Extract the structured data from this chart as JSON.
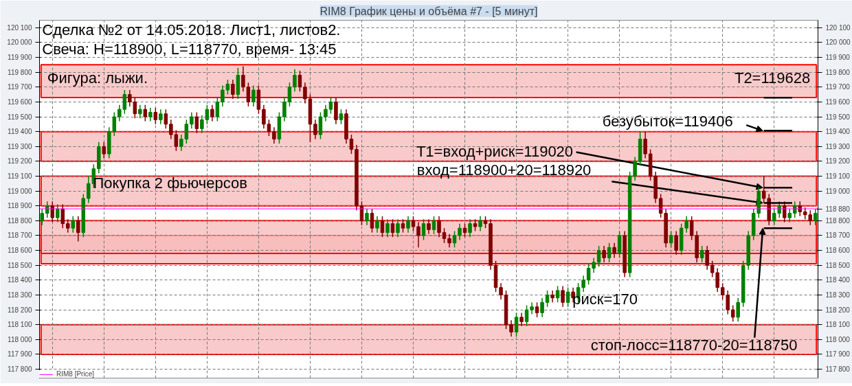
{
  "chart_data": {
    "type": "candlestick",
    "title": "RIM8 График цены и объёма #7 - [5 минут]",
    "annotations": [
      "Сделка №2 от 14.05.2018. Лист1, листов2.",
      "Свеча: H=118900, L=118770, время- 13:45",
      "Фигура: лыжи.",
      "Покупка 2 фьючерсов",
      "риск=170",
      {
        "text": "Т2=119628",
        "y": 119628
      },
      {
        "text": "безубыток=119406",
        "y": 119406
      },
      "Т1=вход+риск=119020",
      {
        "text": "вход=118900+20=118920",
        "y": 118920
      },
      "стоп-лосс=118770-20=118750"
    ],
    "categories": [
      null,
      null,
      null,
      null,
      null,
      null,
      null,
      null,
      null,
      null,
      null,
      null,
      null,
      null,
      null,
      null,
      null,
      null,
      null,
      null,
      null,
      null,
      null,
      null,
      null,
      null,
      null,
      null,
      null,
      null,
      null,
      null,
      null,
      null,
      null,
      null,
      null,
      null,
      null,
      null,
      null,
      null,
      null,
      null,
      null,
      null,
      null,
      null,
      null,
      null,
      null,
      null,
      null,
      null,
      null,
      null,
      null,
      null,
      null,
      null,
      null,
      null,
      null,
      null,
      null,
      null,
      null,
      null,
      null,
      null,
      null,
      null,
      null,
      null,
      null,
      null,
      null,
      null,
      null,
      null,
      null,
      null,
      null,
      null,
      null,
      null,
      null,
      null,
      null,
      null,
      null,
      null,
      null,
      null,
      null,
      null,
      null,
      null,
      null,
      null,
      null,
      null,
      null,
      null,
      null,
      null,
      null,
      null,
      null,
      null,
      null,
      null,
      null,
      null,
      null,
      null,
      null,
      null,
      null,
      null,
      null,
      null,
      null,
      null,
      null,
      null,
      null,
      null,
      null,
      null,
      null,
      null,
      null,
      null,
      null,
      null,
      null,
      null,
      null,
      null,
      null,
      null,
      null,
      null,
      null,
      null,
      null,
      null,
      null,
      null,
      null
    ],
    "colors": [
      "#008000",
      "#008000",
      "#800000",
      "#008000",
      "#800000",
      "#800000",
      "#008000",
      "#800000",
      "#008000",
      "#008000",
      "#008000",
      "#008000",
      "#800000",
      "#008000",
      "#008000",
      "#008000",
      "#008000",
      "#800000",
      "#800000",
      "#008000",
      "#800000",
      "#008000",
      "#800000",
      "#008000",
      "#800000",
      "#800000",
      "#800000",
      "#008000",
      "#008000",
      "#008000",
      "#800000",
      "#008000",
      "#008000",
      "#800000",
      "#008000",
      "#008000",
      "#008000",
      "#800000",
      "#008000",
      "#800000",
      "#800000",
      "#008000",
      "#800000",
      "#800000",
      "#800000",
      "#800000",
      "#008000",
      "#008000",
      "#008000",
      "#008000",
      "#800000",
      "#800000",
      "#800000",
      "#800000",
      "#008000",
      "#008000",
      "#008000",
      "#800000",
      "#008000",
      "#800000",
      "#800000",
      "#800000",
      "#800000",
      "#008000",
      "#800000",
      "#008000",
      "#800000",
      "#008000",
      "#800000",
      "#008000",
      "#800000",
      "#008000",
      "#800000",
      "#800000",
      "#008000",
      "#800000",
      "#008000",
      "#800000",
      "#800000",
      "#800000",
      "#008000",
      "#008000",
      "#800000",
      "#008000",
      "#800000",
      "#008000",
      "#800000",
      "#800000",
      "#800000",
      "#800000",
      "#800000",
      "#800000",
      "#008000",
      "#800000",
      "#008000",
      "#008000",
      "#800000",
      "#008000",
      "#008000",
      "#800000",
      "#008000",
      "#800000",
      "#008000",
      "#800000",
      "#008000",
      "#008000",
      "#008000",
      "#008000",
      "#008000",
      "#800000",
      "#008000",
      "#800000",
      "#008000",
      "#800000",
      "#008000",
      "#008000",
      "#008000",
      "#800000",
      "#800000",
      "#800000",
      "#800000",
      "#800000",
      "#008000",
      "#800000",
      "#008000",
      "#008000",
      "#800000",
      "#800000",
      "#008000",
      "#800000",
      "#800000",
      "#800000",
      "#800000",
      "#800000",
      "#800000",
      "#008000",
      "#008000",
      "#008000",
      "#008000",
      "#008000",
      "#800000",
      "#800000",
      "#008000",
      "#008000",
      "#800000",
      "#008000",
      "#008000",
      "#800000",
      "#800000",
      "#800000",
      "#008000"
    ],
    "ohlc": [
      [
        118800,
        118880,
        118770,
        118850
      ],
      [
        118850,
        118930,
        118820,
        118900
      ],
      [
        118900,
        118930,
        118790,
        118820
      ],
      [
        118820,
        118910,
        118790,
        118880
      ],
      [
        118880,
        118910,
        118750,
        118780
      ],
      [
        118780,
        118810,
        118720,
        118750
      ],
      [
        118750,
        118830,
        118720,
        118800
      ],
      [
        118800,
        118830,
        118660,
        118720
      ],
      [
        118720,
        118980,
        118690,
        118950
      ],
      [
        118950,
        119100,
        118920,
        119050
      ],
      [
        119050,
        119180,
        119020,
        119150
      ],
      [
        119150,
        119330,
        119120,
        119300
      ],
      [
        119300,
        119330,
        119220,
        119250
      ],
      [
        119250,
        119430,
        119220,
        119400
      ],
      [
        119400,
        119530,
        119370,
        119500
      ],
      [
        119500,
        119580,
        119470,
        119550
      ],
      [
        119550,
        119680,
        119520,
        119650
      ],
      [
        119650,
        119680,
        119570,
        119600
      ],
      [
        119600,
        119630,
        119490,
        119520
      ],
      [
        119520,
        119580,
        119490,
        119550
      ],
      [
        119550,
        119580,
        119470,
        119500
      ],
      [
        119500,
        119560,
        119470,
        119530
      ],
      [
        119530,
        119560,
        119450,
        119480
      ],
      [
        119480,
        119550,
        119450,
        119520
      ],
      [
        119520,
        119550,
        119420,
        119450
      ],
      [
        119450,
        119480,
        119350,
        119380
      ],
      [
        119380,
        119410,
        119270,
        119300
      ],
      [
        119300,
        119380,
        119270,
        119350
      ],
      [
        119350,
        119480,
        119320,
        119450
      ],
      [
        119450,
        119530,
        119420,
        119500
      ],
      [
        119500,
        119530,
        119390,
        119420
      ],
      [
        119420,
        119510,
        119390,
        119480
      ],
      [
        119480,
        119580,
        119450,
        119550
      ],
      [
        119550,
        119580,
        119470,
        119500
      ],
      [
        119500,
        119630,
        119470,
        119600
      ],
      [
        119600,
        119710,
        119570,
        119680
      ],
      [
        119680,
        119750,
        119650,
        119720
      ],
      [
        119720,
        119750,
        119620,
        119650
      ],
      [
        119650,
        119830,
        119620,
        119780
      ],
      [
        119780,
        119840,
        119670,
        119700
      ],
      [
        119700,
        119730,
        119570,
        119600
      ],
      [
        119600,
        119710,
        119570,
        119680
      ],
      [
        119680,
        119710,
        119520,
        119550
      ],
      [
        119550,
        119580,
        119420,
        119450
      ],
      [
        119450,
        119480,
        119370,
        119400
      ],
      [
        119400,
        119430,
        119320,
        119350
      ],
      [
        119350,
        119530,
        119320,
        119500
      ],
      [
        119500,
        119630,
        119470,
        119600
      ],
      [
        119600,
        119730,
        119570,
        119700
      ],
      [
        119700,
        119820,
        119670,
        119780
      ],
      [
        119780,
        119810,
        119670,
        119700
      ],
      [
        119700,
        119730,
        119590,
        119620
      ],
      [
        119620,
        119650,
        119330,
        119450
      ],
      [
        119450,
        119480,
        119350,
        119380
      ],
      [
        119380,
        119530,
        119350,
        119500
      ],
      [
        119500,
        119580,
        119470,
        119550
      ],
      [
        119550,
        119630,
        119520,
        119600
      ],
      [
        119600,
        119630,
        119450,
        119480
      ],
      [
        119480,
        119550,
        119450,
        119520
      ],
      [
        119520,
        119550,
        119320,
        119350
      ],
      [
        119350,
        119380,
        119250,
        119280
      ],
      [
        119280,
        119310,
        118870,
        118900
      ],
      [
        118900,
        118930,
        118770,
        118800
      ],
      [
        118800,
        118880,
        118770,
        118850
      ],
      [
        118850,
        118880,
        118720,
        118750
      ],
      [
        118750,
        118830,
        118720,
        118800
      ],
      [
        118800,
        118830,
        118690,
        118720
      ],
      [
        118720,
        118810,
        118690,
        118780
      ],
      [
        118780,
        118810,
        118690,
        118720
      ],
      [
        118720,
        118810,
        118690,
        118780
      ],
      [
        118780,
        118810,
        118720,
        118750
      ],
      [
        118750,
        118830,
        118720,
        118800
      ],
      [
        118800,
        118830,
        118730,
        118760
      ],
      [
        118760,
        118790,
        118620,
        118700
      ],
      [
        118700,
        118810,
        118670,
        118780
      ],
      [
        118780,
        118810,
        118710,
        118740
      ],
      [
        118740,
        118830,
        118710,
        118800
      ],
      [
        118800,
        118830,
        118690,
        118720
      ],
      [
        118720,
        118750,
        118650,
        118680
      ],
      [
        118680,
        118710,
        118620,
        118650
      ],
      [
        118650,
        118730,
        118620,
        118700
      ],
      [
        118700,
        118780,
        118670,
        118750
      ],
      [
        118750,
        118780,
        118690,
        118720
      ],
      [
        118720,
        118810,
        118690,
        118780
      ],
      [
        118780,
        118810,
        118730,
        118760
      ],
      [
        118760,
        118830,
        118730,
        118800
      ],
      [
        118800,
        118830,
        118750,
        118780
      ],
      [
        118780,
        118810,
        118470,
        118500
      ],
      [
        118500,
        118530,
        118320,
        118350
      ],
      [
        118350,
        118380,
        118270,
        118300
      ],
      [
        118300,
        118330,
        118070,
        118100
      ],
      [
        118100,
        118130,
        118020,
        118050
      ],
      [
        118050,
        118180,
        118020,
        118150
      ],
      [
        118150,
        118180,
        118090,
        118120
      ],
      [
        118120,
        118230,
        118090,
        118200
      ],
      [
        118200,
        118250,
        118170,
        118220
      ],
      [
        118220,
        118250,
        118150,
        118180
      ],
      [
        118180,
        118280,
        118150,
        118250
      ],
      [
        118250,
        118330,
        118220,
        118300
      ],
      [
        118300,
        118330,
        118250,
        118280
      ],
      [
        118280,
        118360,
        118250,
        118330
      ],
      [
        118330,
        118360,
        118220,
        118250
      ],
      [
        118250,
        118350,
        118220,
        118320
      ],
      [
        118320,
        118350,
        118250,
        118280
      ],
      [
        118280,
        118380,
        118250,
        118350
      ],
      [
        118350,
        118430,
        118320,
        118400
      ],
      [
        118400,
        118510,
        118370,
        118480
      ],
      [
        118480,
        118550,
        118450,
        118520
      ],
      [
        118520,
        118630,
        118490,
        118600
      ],
      [
        118600,
        118630,
        118520,
        118550
      ],
      [
        118550,
        118650,
        118520,
        118620
      ],
      [
        118620,
        118650,
        118550,
        118580
      ],
      [
        118580,
        118730,
        118550,
        118700
      ],
      [
        118700,
        118730,
        118420,
        118450
      ],
      [
        118450,
        119130,
        118420,
        119100
      ],
      [
        119100,
        119230,
        119070,
        119200
      ],
      [
        119200,
        119400,
        119170,
        119350
      ],
      [
        119350,
        119400,
        119220,
        119250
      ],
      [
        119250,
        119280,
        119070,
        119100
      ],
      [
        119100,
        119130,
        118920,
        118950
      ],
      [
        118950,
        118980,
        118820,
        118850
      ],
      [
        118850,
        118880,
        118620,
        118650
      ],
      [
        118650,
        118730,
        118620,
        118700
      ],
      [
        118700,
        118730,
        118570,
        118600
      ],
      [
        118600,
        118780,
        118570,
        118750
      ],
      [
        118750,
        118830,
        118720,
        118800
      ],
      [
        118800,
        118830,
        118670,
        118700
      ],
      [
        118700,
        118730,
        118520,
        118550
      ],
      [
        118550,
        118630,
        118520,
        118600
      ],
      [
        118600,
        118630,
        118470,
        118500
      ],
      [
        118500,
        118530,
        118420,
        118450
      ],
      [
        118450,
        118480,
        118320,
        118350
      ],
      [
        118350,
        118380,
        118270,
        118300
      ],
      [
        118300,
        118330,
        118170,
        118200
      ],
      [
        118200,
        118230,
        118120,
        118150
      ],
      [
        118150,
        118280,
        118120,
        118250
      ],
      [
        118250,
        118530,
        118220,
        118500
      ],
      [
        118500,
        118730,
        118470,
        118700
      ],
      [
        118700,
        118880,
        118670,
        118850
      ],
      [
        118850,
        119030,
        118820,
        119000
      ],
      [
        119000,
        119100,
        118920,
        118950
      ],
      [
        118950,
        118980,
        118770,
        118800
      ],
      [
        118800,
        118880,
        118770,
        118850
      ],
      [
        118850,
        118930,
        118820,
        118900
      ],
      [
        118900,
        118930,
        118790,
        118820
      ],
      [
        118820,
        118880,
        118790,
        118850
      ],
      [
        118850,
        118930,
        118820,
        118900
      ],
      [
        118900,
        118930,
        118830,
        118860
      ],
      [
        118860,
        118890,
        118810,
        118840
      ],
      [
        118840,
        118870,
        118770,
        118800
      ],
      [
        118800,
        118880,
        118770,
        118850
      ]
    ],
    "ylim": [
      117740,
      120150
    ],
    "yticks": [
      {
        "value": 117800,
        "label": "117 800"
      },
      {
        "value": 117900,
        "label": "117 900"
      },
      {
        "value": 118000,
        "label": "118 000"
      },
      {
        "value": 118100,
        "label": "118 100"
      },
      {
        "value": 118200,
        "label": "118 200"
      },
      {
        "value": 118300,
        "label": "118 300"
      },
      {
        "value": 118400,
        "label": "118 400"
      },
      {
        "value": 118500,
        "label": "118 500"
      },
      {
        "value": 118600,
        "label": "118 600"
      },
      {
        "value": 118700,
        "label": "118 700"
      },
      {
        "value": 118800,
        "label": "118 800"
      },
      {
        "value": 118900,
        "label": "118 900"
      },
      {
        "value": 119000,
        "label": "119 000"
      },
      {
        "value": 119100,
        "label": "119 100"
      },
      {
        "value": 119200,
        "label": "119 200"
      },
      {
        "value": 119300,
        "label": "119 300"
      },
      {
        "value": 119400,
        "label": "119 400"
      },
      {
        "value": 119500,
        "label": "119 500"
      },
      {
        "value": 119600,
        "label": "119 600"
      },
      {
        "value": 119700,
        "label": "119 700"
      },
      {
        "value": 119800,
        "label": "119 800"
      },
      {
        "value": 119900,
        "label": "119 900"
      },
      {
        "value": 120000,
        "label": "120 000"
      },
      {
        "value": 120100,
        "label": "120 100"
      }
    ],
    "y2lim": [
      117740,
      120150
    ],
    "y2ticks": [
      {
        "value": 117800,
        "label": "117 800"
      },
      {
        "value": 117900,
        "label": "117 900"
      },
      {
        "value": 118000,
        "label": "118 000"
      },
      {
        "value": 118100,
        "label": "118 100"
      },
      {
        "value": 118200,
        "label": "118 200"
      },
      {
        "value": 118300,
        "label": "118 300"
      },
      {
        "value": 118400,
        "label": "118 400"
      },
      {
        "value": 118500,
        "label": "118 500"
      },
      {
        "value": 118600,
        "label": "118 600"
      },
      {
        "value": 118700,
        "label": "118 700"
      },
      {
        "value": 118800,
        "label": "118 800"
      },
      {
        "value": 118880,
        "label": "118 880"
      },
      {
        "value": 119000,
        "label": "119 000"
      },
      {
        "value": 119100,
        "label": "119 100"
      },
      {
        "value": 119200,
        "label": "119 200"
      },
      {
        "value": 119300,
        "label": "119 300"
      },
      {
        "value": 119400,
        "label": "119 400"
      },
      {
        "value": 119500,
        "label": "119 500"
      },
      {
        "value": 119600,
        "label": "119 600"
      },
      {
        "value": 119700,
        "label": "119 700"
      },
      {
        "value": 119800,
        "label": "119 800"
      },
      {
        "value": 119900,
        "label": "119 900"
      },
      {
        "value": 120000,
        "label": "120 000"
      },
      {
        "value": 120100,
        "label": "120 100"
      }
    ],
    "ref_lines": [
      {
        "axis": "y",
        "value": 118880,
        "label": "RIM8 [Price]",
        "color": "#ff00ff"
      }
    ],
    "bands": [
      {
        "axis": "y",
        "from": 119630,
        "to": 119850,
        "color": "#f7b8b8"
      },
      {
        "axis": "y",
        "from": 119200,
        "to": 119400,
        "color": "#f7b8b8"
      },
      {
        "axis": "y",
        "from": 118900,
        "to": 119100,
        "color": "#f7b8b8"
      },
      {
        "axis": "y",
        "from": 118510,
        "to": 118700,
        "color": "#f7b8b8"
      },
      {
        "axis": "y",
        "from": 118580,
        "to": 118800,
        "color": "#f7b8b8"
      },
      {
        "axis": "y",
        "from": 117900,
        "to": 118100,
        "color": "#f7b8b8"
      }
    ],
    "grid": true,
    "legend": "bottom left"
  }
}
